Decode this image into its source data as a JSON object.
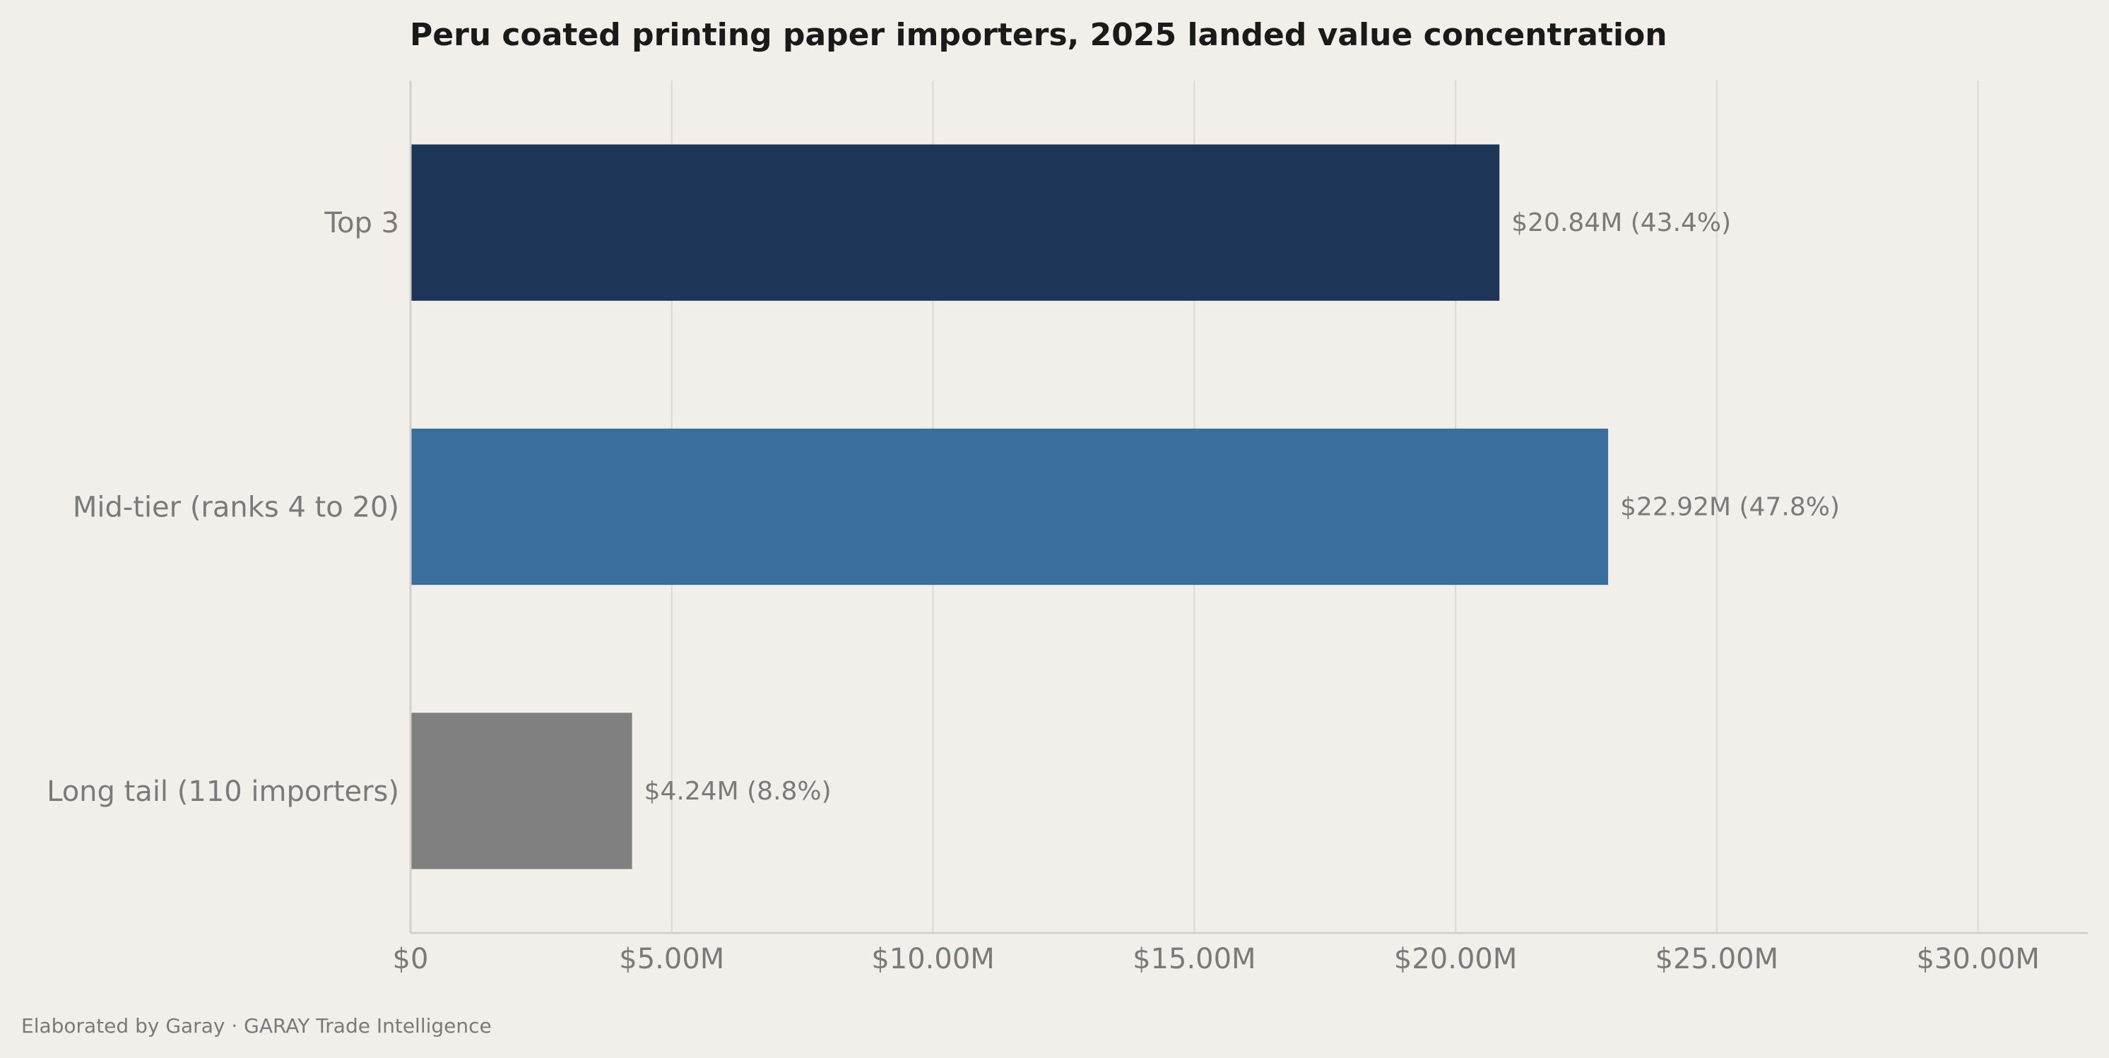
{
  "chart_data": {
    "type": "bar",
    "orientation": "horizontal",
    "title": "Peru coated printing paper importers, 2025 landed value concentration",
    "categories": [
      "Top 3",
      "Mid-tier (ranks 4 to 20)",
      "Long tail (110 importers)"
    ],
    "values": [
      20.84,
      22.92,
      4.24
    ],
    "value_labels": [
      "$20.84M  (43.4%)",
      "$22.92M  (47.8%)",
      "$4.24M  (8.8%)"
    ],
    "colors": [
      "#1d3557",
      "#3a6e9c",
      "#808080"
    ],
    "xlim": [
      0,
      32.1
    ],
    "x_ticks": [
      0,
      5,
      10,
      15,
      20,
      25,
      30
    ],
    "x_tick_labels": [
      "$0",
      "$5.00M",
      "$10.00M",
      "$15.00M",
      "$20.00M",
      "$25.00M",
      "$30.00M"
    ],
    "grid": true,
    "xlabel": "",
    "ylabel": ""
  },
  "footer": "Elaborated by Garay  ·  GARAY Trade Intelligence"
}
